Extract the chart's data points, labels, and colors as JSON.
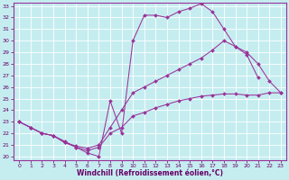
{
  "xlabel": "Windchill (Refroidissement éolien,°C)",
  "background_color": "#c5edf0",
  "line_color": "#993399",
  "xlim": [
    -0.5,
    23.5
  ],
  "ylim": [
    19.7,
    33.3
  ],
  "xticks": [
    0,
    1,
    2,
    3,
    4,
    5,
    6,
    7,
    8,
    9,
    10,
    11,
    12,
    13,
    14,
    15,
    16,
    17,
    18,
    19,
    20,
    21,
    22,
    23
  ],
  "yticks": [
    20,
    21,
    22,
    23,
    24,
    25,
    26,
    27,
    28,
    29,
    30,
    31,
    32,
    33
  ],
  "line1_x": [
    0,
    1,
    2,
    3,
    4,
    5,
    6,
    7,
    8,
    9,
    10,
    11,
    12,
    13,
    14,
    15,
    16,
    17,
    18,
    19,
    20,
    21
  ],
  "line1_y": [
    23.0,
    22.5,
    22.0,
    21.8,
    21.3,
    20.8,
    20.3,
    20.0,
    24.8,
    22.0,
    30.0,
    32.2,
    32.2,
    32.0,
    32.5,
    32.8,
    33.2,
    32.5,
    31.0,
    29.5,
    28.8,
    26.8
  ],
  "line2_x": [
    0,
    1,
    2,
    3,
    4,
    5,
    6,
    7,
    8,
    9,
    10,
    11,
    12,
    13,
    14,
    15,
    16,
    17,
    18,
    19,
    20,
    21,
    22,
    23
  ],
  "line2_y": [
    23.0,
    22.5,
    22.0,
    21.8,
    21.2,
    20.9,
    20.7,
    21.0,
    22.5,
    24.0,
    25.5,
    26.0,
    26.5,
    27.0,
    27.5,
    28.0,
    28.5,
    29.2,
    30.0,
    29.5,
    29.0,
    28.0,
    26.5,
    25.5
  ],
  "line3_x": [
    0,
    1,
    2,
    3,
    4,
    5,
    6,
    7,
    8,
    9,
    10,
    11,
    12,
    13,
    14,
    15,
    16,
    17,
    18,
    19,
    20,
    21,
    22,
    23
  ],
  "line3_y": [
    23.0,
    22.5,
    22.0,
    21.8,
    21.2,
    20.8,
    20.5,
    20.8,
    22.0,
    22.5,
    23.5,
    23.8,
    24.2,
    24.5,
    24.8,
    25.0,
    25.2,
    25.3,
    25.4,
    25.4,
    25.3,
    25.3,
    25.5,
    25.5
  ]
}
